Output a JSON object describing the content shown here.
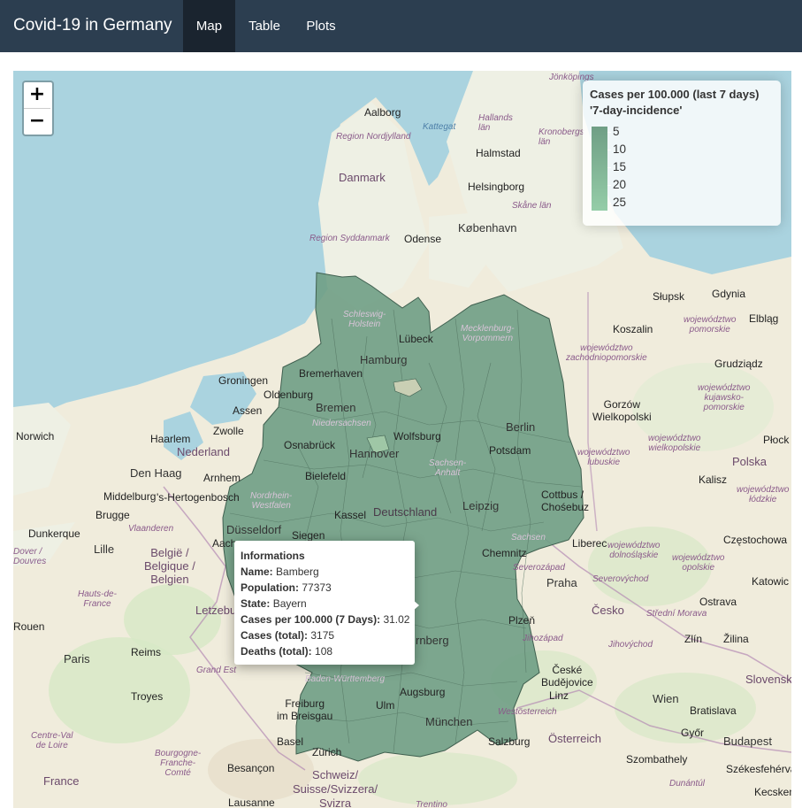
{
  "navbar": {
    "brand": "Covid-19 in Germany",
    "tabs": [
      {
        "label": "Map",
        "active": true
      },
      {
        "label": "Table",
        "active": false
      },
      {
        "label": "Plots",
        "active": false
      }
    ]
  },
  "map": {
    "zoom_in": "+",
    "zoom_out": "−",
    "legend": {
      "title_line1": "Cases per 100.000 (last 7 days)",
      "title_line2": "'7-day-incidence'",
      "ticks": [
        "5",
        "10",
        "15",
        "20",
        "25"
      ],
      "color_low": "#6f9e85",
      "color_high": "#95cda8"
    },
    "popup": {
      "heading": "Informations",
      "name_label": "Name:",
      "name": "Bamberg",
      "population_label": "Population:",
      "population": "77373",
      "state_label": "State:",
      "state": "Bayern",
      "incidence_label": "Cases per 100.000 (7 Days):",
      "incidence": "31.02",
      "cases_label": "Cases (total):",
      "cases": "3175",
      "deaths_label": "Deaths (total):",
      "deaths": "108"
    },
    "labels": {
      "aalborg": "Aalborg",
      "kattegat": "Kattegat",
      "region_nordjylland": "Region Nordjylland",
      "danmark": "Danmark",
      "halmstad": "Halmstad",
      "hallands_lan": "Hallands\nlän",
      "kronobergs_lan": "Kronobergs\nlän",
      "jonkopings": "Jönköpings",
      "helsingborg": "Helsingborg",
      "skane_lan": "Skåne län",
      "kobenhavn": "København",
      "region_syddanmark": "Region Syddanmark",
      "odense": "Odense",
      "slupsk": "Słupsk",
      "gdynia": "Gdynia",
      "elblag": "Elbląg",
      "woj_pomorskie": "województwo\npomorskie",
      "koszalin": "Koszalin",
      "woj_zachodniopomorskie": "województwo\nzachodniopomorskie",
      "grudziadz": "Grudziądz",
      "gorzow": "Gorzów\nWielkopolski",
      "woj_kujawsko": "województwo\nkujawsko-\npomorskie",
      "woj_lubuskie": "województwo\nlubuskie",
      "woj_wielkopolskie": "województwo\nwielkopolskie",
      "polska": "Polska",
      "plock": "Płock",
      "kalisz": "Kalisz",
      "woj_lodzkie": "województwo\nłódzkie",
      "cottbus": "Cottbus /\nChośebuz",
      "czestochowa": "Częstochowa",
      "woj_dolnoslaskie": "województwo\ndolnośląskie",
      "woj_opolskie": "województwo\nopolskie",
      "katowice": "Katowic",
      "praha": "Praha",
      "severozapad": "Severozápad",
      "severovychod": "Severovýchod",
      "cesko": "Česko",
      "ostrava": "Ostrava",
      "stredni_morava": "Střední Morava",
      "zlin": "Zlín",
      "zilina": "Žilina",
      "jihozapad": "Jihozápad",
      "jihovychod": "Jihovýchod",
      "plzen": "Plzeň",
      "ceske_budejovice": "České\nBudějovice",
      "slovensko": "Slovensk",
      "linz": "Linz",
      "wien": "Wien",
      "bratislava": "Bratislava",
      "osterreich_region": "Westösterreich",
      "osterreich": "Österreich",
      "gyor": "Győr",
      "budapest": "Budapest",
      "szombathely": "Szombathely",
      "szekesfehervar": "Székesfehérvár",
      "dunantul": "Dunántúl",
      "kecskemet": "Kecskemé",
      "salzburg": "Salzburg",
      "munchen": "München",
      "augsburg": "Augsburg",
      "ulm": "Ulm",
      "baden": "Baden-Württemberg",
      "freiburg": "Freiburg\nim Breisgau",
      "basel": "Basel",
      "zurich": "Zürich",
      "schweiz": "Schweiz/\nSuisse/Svizzera/\nSvizra",
      "trentino": "Trentino",
      "besancon": "Besançon",
      "lausanne": "Lausanne",
      "bourgogne": "Bourgogne-\nFranche-\nComté",
      "france": "France",
      "centre": "Centre-Val\nde Loire",
      "troyes": "Troyes",
      "grand_est": "Grand Est",
      "paris": "Paris",
      "reims": "Reims",
      "rouen": "Rouen",
      "hauts": "Hauts-de-\nFrance",
      "lille": "Lille",
      "dunkerque": "Dunkerque",
      "dover": "Dover /\nDouvres",
      "belgique": "België /\nBelgique /\nBelgien",
      "letzebuerg": "Letzebu",
      "brugge": "Brugge",
      "vlaanderen": "Vlaanderen",
      "middelburg": "Middelburg",
      "hertogenbosch": "'s-Hertogenbosch",
      "den_haag": "Den Haag",
      "haarlem": "Haarlem",
      "nederland": "Nederland",
      "arnhem": "Arnhem",
      "zwolle": "Zwolle",
      "assen": "Assen",
      "groningen": "Groningen",
      "norwich": "Norwich",
      "aachen": "Aache",
      "dusseldorf": "Düsseldorf",
      "siegen": "Siegen",
      "kassel": "Kassel",
      "deutschland": "Deutschland",
      "leipzig": "Leipzig",
      "chemnitz": "Chemnitz",
      "sachsen": "Sachsen",
      "liberec": "Liberec",
      "berlin": "Berlin",
      "potsdam": "Potsdam",
      "hannover": "Hannover",
      "wolfsburg": "Wolfsburg",
      "bielefeld": "Bielefeld",
      "osnabruck": "Osnabrück",
      "niedersachsen": "Niedersachsen",
      "bremen": "Bremen",
      "oldenburg": "Oldenburg",
      "bremerhaven": "Bremerhaven",
      "hamburg": "Hamburg",
      "lubeck": "Lübeck",
      "schleswig": "Schleswig-\nHolstein",
      "mecklenburg": "Mecklenburg-\nVorpommern",
      "nurnberg": "rnberg",
      "sachsen_anhalt": "Sachsen-\nAnhalt",
      "nrw": "Nordrhein-\nWestfalen"
    }
  }
}
